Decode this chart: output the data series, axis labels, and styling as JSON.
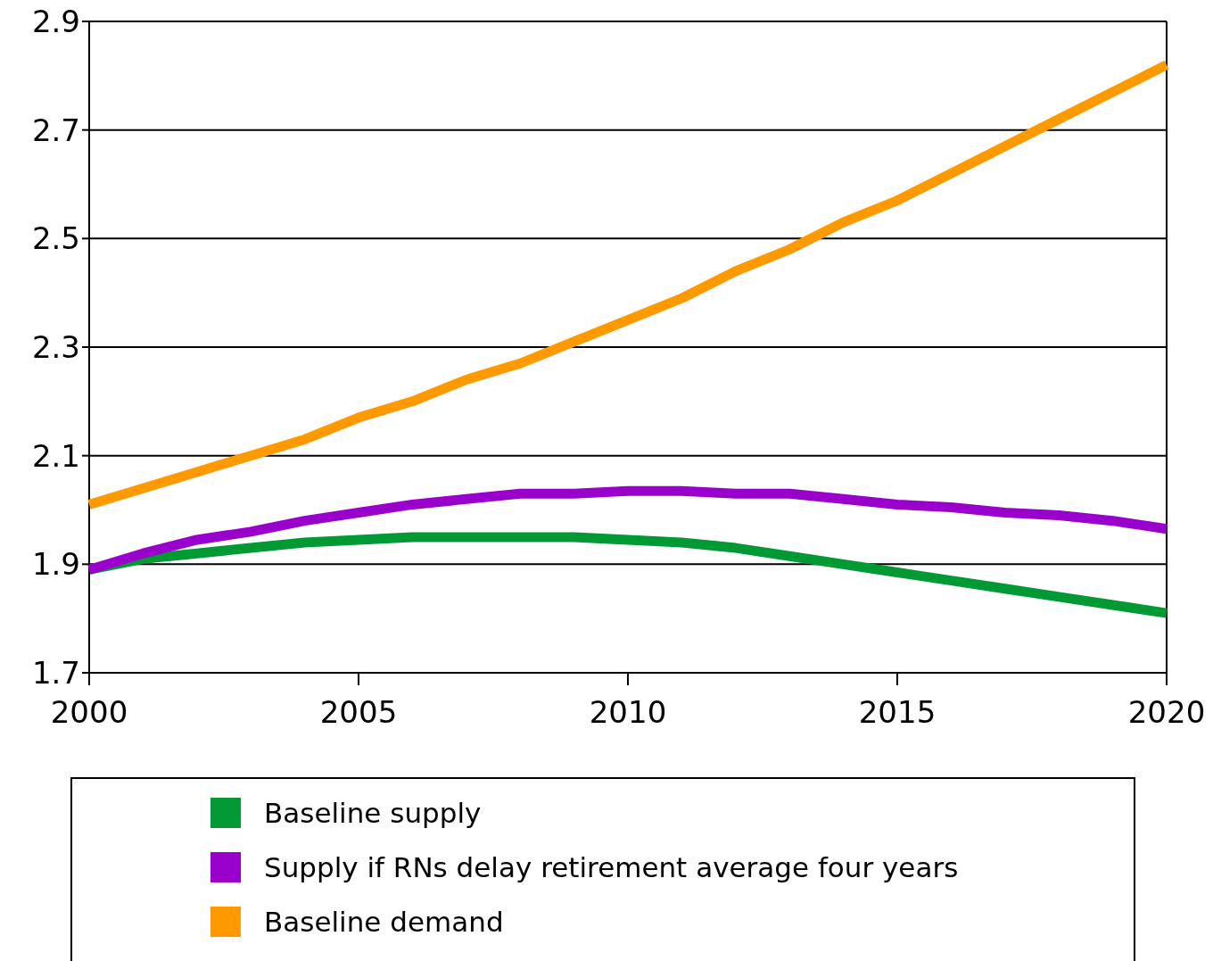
{
  "chart_data": {
    "type": "line",
    "x": [
      2000,
      2001,
      2002,
      2003,
      2004,
      2005,
      2006,
      2007,
      2008,
      2009,
      2010,
      2011,
      2012,
      2013,
      2014,
      2015,
      2016,
      2017,
      2018,
      2019,
      2020
    ],
    "series": [
      {
        "name": "Baseline supply",
        "color": "#009933",
        "values": [
          1.89,
          1.91,
          1.92,
          1.93,
          1.94,
          1.945,
          1.95,
          1.95,
          1.95,
          1.95,
          1.945,
          1.94,
          1.93,
          1.915,
          1.9,
          1.885,
          1.87,
          1.855,
          1.84,
          1.825,
          1.81
        ]
      },
      {
        "name": "Supply if RNs delay retirement average four years",
        "color": "#9900cc",
        "values": [
          1.89,
          1.92,
          1.945,
          1.96,
          1.98,
          1.995,
          2.01,
          2.02,
          2.03,
          2.03,
          2.035,
          2.035,
          2.03,
          2.03,
          2.02,
          2.01,
          2.005,
          1.995,
          1.99,
          1.98,
          1.965
        ]
      },
      {
        "name": "Baseline demand",
        "color": "#ff9900",
        "values": [
          2.01,
          2.04,
          2.07,
          2.1,
          2.13,
          2.17,
          2.2,
          2.24,
          2.27,
          2.31,
          2.35,
          2.39,
          2.44,
          2.48,
          2.53,
          2.57,
          2.62,
          2.67,
          2.72,
          2.77,
          2.82
        ]
      }
    ],
    "xlim": [
      2000,
      2020
    ],
    "xticks": [
      2000,
      2005,
      2010,
      2015,
      2020
    ],
    "ylim": [
      1.7,
      2.9
    ],
    "yticks": [
      1.7,
      1.9,
      2.1,
      2.3,
      2.5,
      2.7,
      2.9
    ],
    "grid": "y",
    "legend": "bottom",
    "marker": "none",
    "line_style": "solid"
  }
}
